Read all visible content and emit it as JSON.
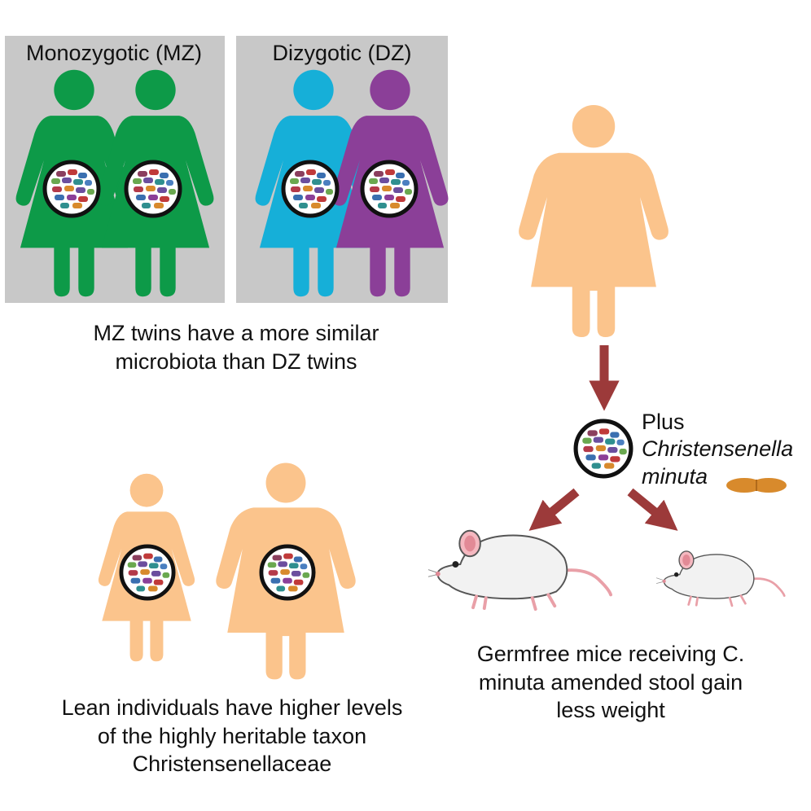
{
  "panels": {
    "mz_label": "Monozygotic (MZ)",
    "dz_label": "Dizygotic (DZ)"
  },
  "captions": {
    "twins": [
      "MZ twins have a more similar",
      "microbiota than DZ twins"
    ],
    "lean": [
      "Lean individuals have higher levels",
      "of the highly heritable taxon",
      "Christensenellaceae"
    ],
    "mice": [
      "Germfree mice receiving C.",
      "minuta amended stool gain",
      "less weight"
    ]
  },
  "addition": {
    "plus": "Plus",
    "species_line1": "Christensenella",
    "species_line2": "minuta"
  },
  "colors": {
    "panel_bg": "#c8c8c8",
    "mz_twin": "#0d9a48",
    "dz_twin_a": "#16afd8",
    "dz_twin_b": "#8b3f98",
    "skin": "#fbc48c",
    "arrow": "#9c3a3a",
    "bacterium_orange": "#d88a2c"
  },
  "icons": {
    "figure": "female-figure-icon",
    "gut": "gut-microbiota-icon",
    "mouse": "mouse-icon",
    "bacterium": "christensenella-bacterium-icon",
    "arrow": "arrow-icon"
  }
}
